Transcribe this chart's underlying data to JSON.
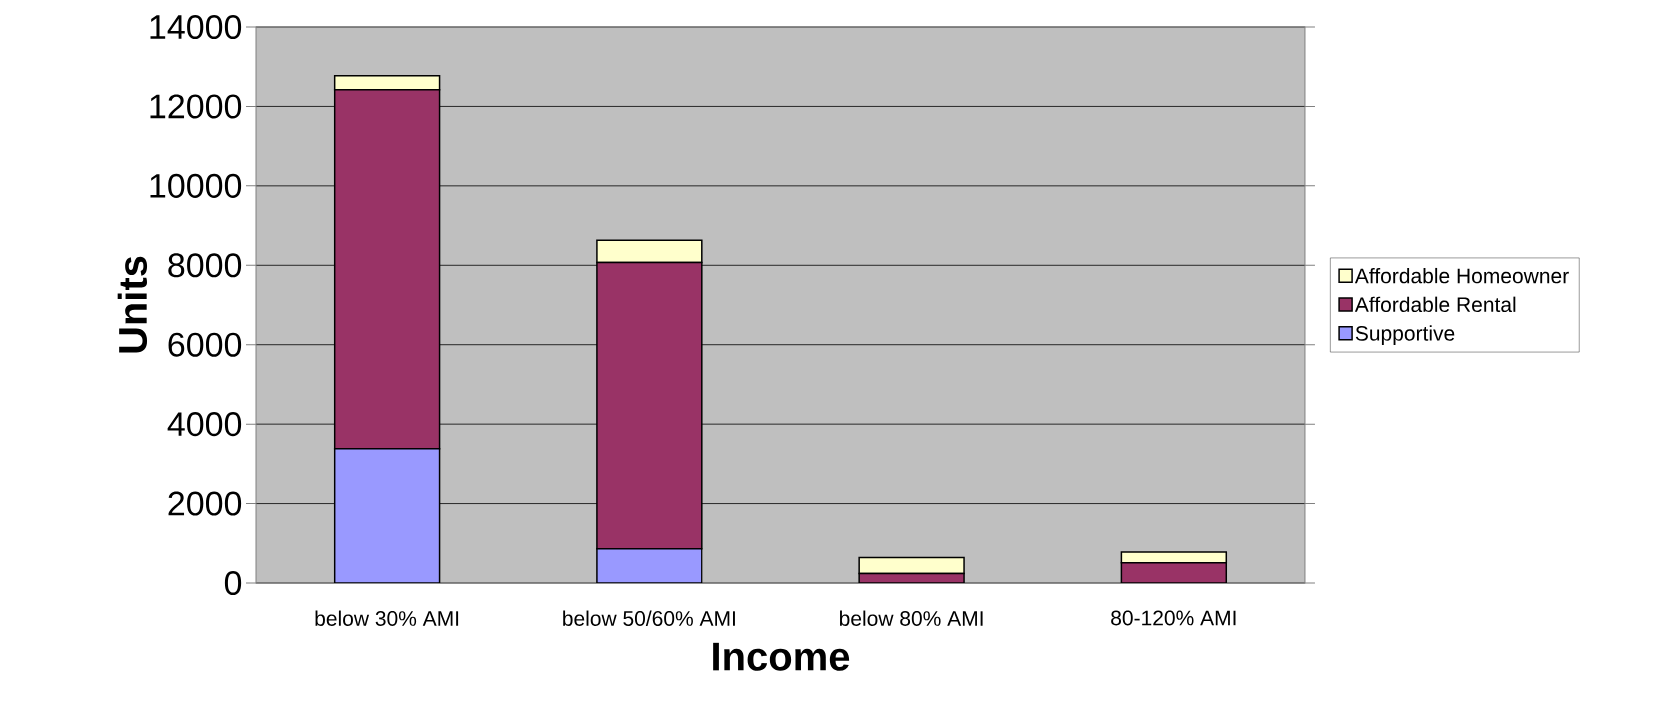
{
  "chart_data": {
    "type": "bar",
    "stacked": true,
    "xlabel": "Income",
    "ylabel": "Units",
    "categories": [
      "below 30% AMI",
      "below 50/60% AMI",
      "below 80% AMI",
      "80-120% AMI"
    ],
    "series": [
      {
        "name": "Supportive",
        "color": "#9999ff",
        "values": [
          3380,
          860,
          0,
          0
        ]
      },
      {
        "name": "Affordable Rental",
        "color": "#993366",
        "values": [
          9040,
          7210,
          240,
          510
        ]
      },
      {
        "name": "Affordable Homeowner",
        "color": "#ffffcc",
        "values": [
          350,
          560,
          400,
          270
        ]
      }
    ],
    "ylim": [
      0,
      14000
    ],
    "yticks": [
      0,
      2000,
      4000,
      6000,
      8000,
      10000,
      12000,
      14000
    ],
    "grid": "y",
    "legend": "right"
  }
}
